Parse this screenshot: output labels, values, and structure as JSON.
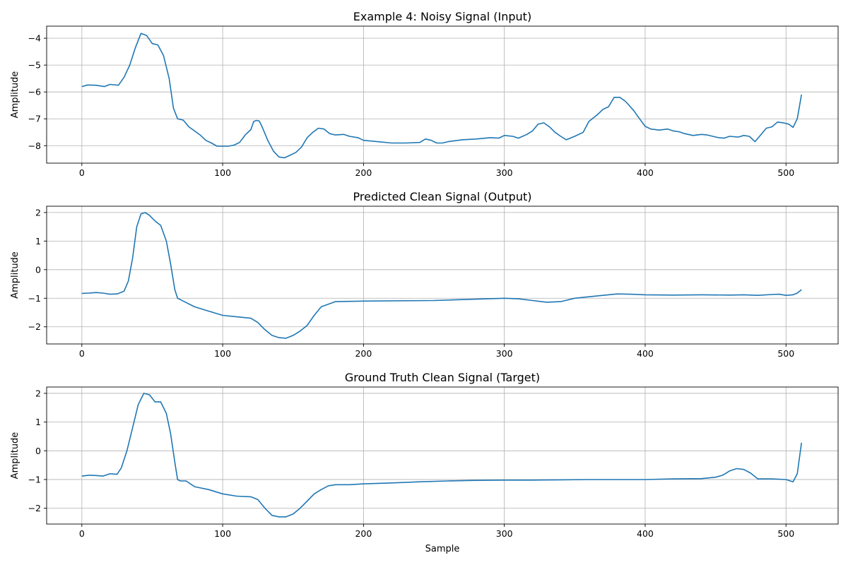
{
  "chart_data": [
    {
      "type": "line",
      "title": "Example 4: Noisy Signal (Input)",
      "xlabel": "",
      "ylabel": "Amplitude",
      "xlim": [
        -25,
        537
      ],
      "ylim": [
        -8.65,
        -3.55
      ],
      "xticks": [
        0,
        100,
        200,
        300,
        400,
        500
      ],
      "yticks": [
        -8,
        -7,
        -6,
        -5,
        -4
      ],
      "grid": true,
      "color": "#1f77b4",
      "series": [
        {
          "x": [
            0,
            4,
            10,
            16,
            20,
            26,
            30,
            34,
            38,
            42,
            46,
            50,
            54,
            58,
            62,
            65,
            68,
            72,
            76,
            80,
            84,
            88,
            92,
            96,
            100,
            104,
            108,
            112,
            116,
            120,
            122,
            124,
            126,
            128,
            132,
            136,
            140,
            144,
            148,
            152,
            156,
            160,
            164,
            168,
            172,
            176,
            180,
            186,
            190,
            196,
            200,
            210,
            220,
            230,
            240,
            244,
            248,
            252,
            256,
            260,
            270,
            280,
            290,
            296,
            300,
            306,
            310,
            316,
            320,
            324,
            328,
            332,
            336,
            340,
            344,
            350,
            356,
            360,
            366,
            370,
            374,
            378,
            382,
            386,
            392,
            396,
            400,
            404,
            410,
            416,
            420,
            424,
            428,
            434,
            440,
            444,
            448,
            452,
            456,
            460,
            466,
            470,
            474,
            478,
            482,
            486,
            490,
            494,
            498,
            502,
            505,
            508,
            511
          ],
          "y": [
            -5.8,
            -5.74,
            -5.75,
            -5.8,
            -5.72,
            -5.75,
            -5.45,
            -5.0,
            -4.35,
            -3.82,
            -3.9,
            -4.2,
            -4.25,
            -4.65,
            -5.5,
            -6.6,
            -7.0,
            -7.05,
            -7.3,
            -7.45,
            -7.6,
            -7.8,
            -7.9,
            -8.02,
            -8.02,
            -8.02,
            -7.98,
            -7.88,
            -7.6,
            -7.4,
            -7.1,
            -7.06,
            -7.08,
            -7.3,
            -7.8,
            -8.2,
            -8.42,
            -8.45,
            -8.35,
            -8.25,
            -8.05,
            -7.7,
            -7.5,
            -7.35,
            -7.38,
            -7.55,
            -7.6,
            -7.58,
            -7.65,
            -7.7,
            -7.8,
            -7.85,
            -7.9,
            -7.9,
            -7.88,
            -7.75,
            -7.8,
            -7.9,
            -7.9,
            -7.85,
            -7.78,
            -7.75,
            -7.7,
            -7.72,
            -7.62,
            -7.65,
            -7.72,
            -7.58,
            -7.45,
            -7.2,
            -7.15,
            -7.3,
            -7.5,
            -7.65,
            -7.78,
            -7.65,
            -7.5,
            -7.1,
            -6.85,
            -6.65,
            -6.55,
            -6.2,
            -6.2,
            -6.35,
            -6.7,
            -7.0,
            -7.28,
            -7.38,
            -7.42,
            -7.38,
            -7.45,
            -7.48,
            -7.55,
            -7.62,
            -7.58,
            -7.6,
            -7.65,
            -7.7,
            -7.72,
            -7.65,
            -7.68,
            -7.62,
            -7.65,
            -7.85,
            -7.6,
            -7.35,
            -7.3,
            -7.12,
            -7.15,
            -7.2,
            -7.32,
            -7.0,
            -6.1
          ]
        }
      ]
    },
    {
      "type": "line",
      "title": "Predicted Clean Signal (Output)",
      "xlabel": "",
      "ylabel": "Amplitude",
      "xlim": [
        -25,
        537
      ],
      "ylim": [
        -2.6,
        2.22
      ],
      "xticks": [
        0,
        100,
        200,
        300,
        400,
        500
      ],
      "yticks": [
        -2,
        -1,
        0,
        1,
        2
      ],
      "grid": true,
      "color": "#1f77b4",
      "series": [
        {
          "x": [
            0,
            5,
            10,
            15,
            20,
            25,
            30,
            33,
            36,
            39,
            42,
            45,
            48,
            52,
            56,
            60,
            63,
            66,
            68,
            72,
            80,
            90,
            100,
            110,
            120,
            125,
            130,
            135,
            140,
            145,
            150,
            155,
            160,
            165,
            170,
            180,
            200,
            250,
            300,
            310,
            320,
            330,
            340,
            350,
            360,
            370,
            380,
            390,
            400,
            420,
            440,
            460,
            470,
            480,
            490,
            495,
            500,
            505,
            508,
            511
          ],
          "y": [
            -0.83,
            -0.82,
            -0.8,
            -0.82,
            -0.86,
            -0.85,
            -0.75,
            -0.4,
            0.4,
            1.5,
            1.95,
            2.0,
            1.9,
            1.7,
            1.55,
            1.0,
            0.2,
            -0.7,
            -1.0,
            -1.1,
            -1.3,
            -1.45,
            -1.6,
            -1.65,
            -1.7,
            -1.85,
            -2.1,
            -2.3,
            -2.38,
            -2.4,
            -2.3,
            -2.15,
            -1.95,
            -1.6,
            -1.3,
            -1.12,
            -1.1,
            -1.08,
            -1.0,
            -1.02,
            -1.08,
            -1.14,
            -1.12,
            -1.0,
            -0.95,
            -0.9,
            -0.85,
            -0.86,
            -0.88,
            -0.89,
            -0.88,
            -0.89,
            -0.88,
            -0.9,
            -0.87,
            -0.86,
            -0.9,
            -0.88,
            -0.82,
            -0.7
          ]
        }
      ]
    },
    {
      "type": "line",
      "title": "Ground Truth Clean Signal (Target)",
      "xlabel": "Sample",
      "ylabel": "Amplitude",
      "xlim": [
        -25,
        537
      ],
      "ylim": [
        -2.55,
        2.22
      ],
      "xticks": [
        0,
        100,
        200,
        300,
        400,
        500
      ],
      "yticks": [
        -2,
        -1,
        0,
        1,
        2
      ],
      "grid": true,
      "color": "#1f77b4",
      "series": [
        {
          "x": [
            0,
            5,
            10,
            15,
            20,
            25,
            28,
            32,
            36,
            40,
            44,
            48,
            52,
            56,
            60,
            63,
            66,
            68,
            70,
            74,
            80,
            90,
            100,
            110,
            120,
            125,
            130,
            135,
            140,
            145,
            150,
            155,
            160,
            165,
            170,
            175,
            180,
            190,
            200,
            220,
            240,
            260,
            280,
            300,
            320,
            340,
            360,
            380,
            400,
            420,
            440,
            450,
            455,
            460,
            465,
            470,
            475,
            480,
            490,
            500,
            505,
            508,
            511
          ],
          "y": [
            -0.88,
            -0.85,
            -0.86,
            -0.88,
            -0.8,
            -0.82,
            -0.6,
            0.0,
            0.8,
            1.6,
            2.0,
            1.95,
            1.7,
            1.7,
            1.3,
            0.6,
            -0.4,
            -1.0,
            -1.05,
            -1.05,
            -1.25,
            -1.35,
            -1.5,
            -1.58,
            -1.6,
            -1.7,
            -2.0,
            -2.25,
            -2.3,
            -2.3,
            -2.2,
            -2.0,
            -1.75,
            -1.5,
            -1.35,
            -1.22,
            -1.18,
            -1.18,
            -1.15,
            -1.12,
            -1.08,
            -1.05,
            -1.03,
            -1.02,
            -1.02,
            -1.01,
            -1.0,
            -1.0,
            -1.0,
            -0.98,
            -0.97,
            -0.92,
            -0.85,
            -0.7,
            -0.62,
            -0.65,
            -0.78,
            -0.98,
            -0.98,
            -1.0,
            -1.08,
            -0.8,
            0.28
          ]
        }
      ]
    }
  ]
}
